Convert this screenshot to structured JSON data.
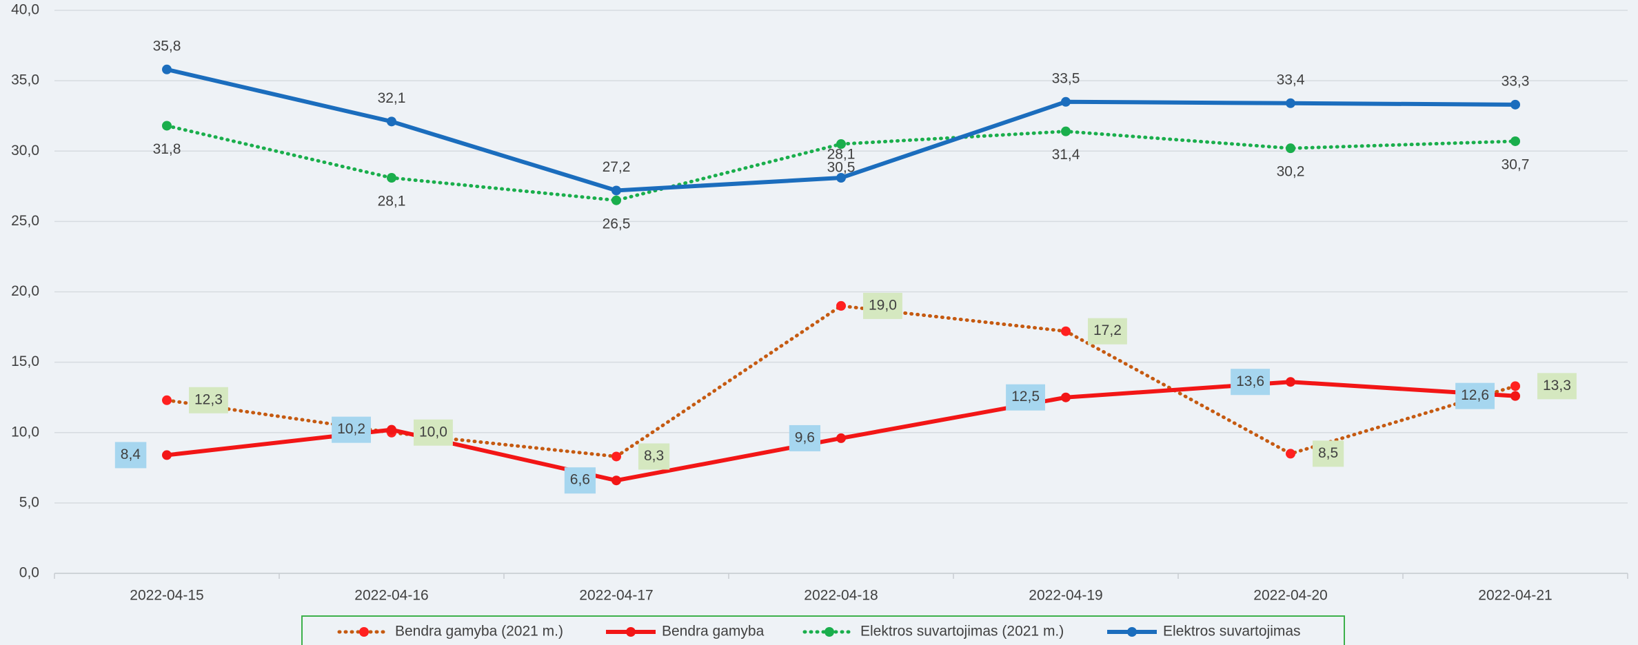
{
  "chart_data": {
    "type": "line",
    "categories": [
      "2022-04-15",
      "2022-04-16",
      "2022-04-17",
      "2022-04-18",
      "2022-04-19",
      "2022-04-20",
      "2022-04-21"
    ],
    "ylim": [
      0,
      40
    ],
    "yticks": [
      {
        "value": 0,
        "label": "0,0"
      },
      {
        "value": 5,
        "label": "5,0"
      },
      {
        "value": 10,
        "label": "10,0"
      },
      {
        "value": 15,
        "label": "15,0"
      },
      {
        "value": 20,
        "label": "20,0"
      },
      {
        "value": 25,
        "label": "25,0"
      },
      {
        "value": 30,
        "label": "30,0"
      },
      {
        "value": 35,
        "label": "35,0"
      },
      {
        "value": 40,
        "label": "40,0"
      }
    ],
    "grid": true,
    "legend": "bottom",
    "series": [
      {
        "name": "Bendra gamyba (2021 m.)",
        "color": "#c55a11",
        "marker_color": "#ff2020",
        "style": "dotted",
        "label_position": "right",
        "label_background": "#d5e8c0",
        "values": [
          12.3,
          10.0,
          8.3,
          19.0,
          17.2,
          8.5,
          13.3
        ],
        "value_labels": [
          "12,3",
          "10,0",
          "8,3",
          "19,0",
          "17,2",
          "8,5",
          "13,3"
        ]
      },
      {
        "name": "Bendra gamyba",
        "color": "#f21616",
        "marker_color": "#f21616",
        "style": "solid",
        "label_position": "left",
        "label_background": "#a6d6ef",
        "values": [
          8.4,
          10.2,
          6.6,
          9.6,
          12.5,
          13.6,
          12.6
        ],
        "value_labels": [
          "8,4",
          "10,2",
          "6,6",
          "9,6",
          "12,5",
          "13,6",
          "12,6"
        ]
      },
      {
        "name": "Elektros suvartojimas (2021 m.)",
        "color": "#1aae4c",
        "marker_color": "#1aae4c",
        "style": "dotted",
        "label_position": "below",
        "values": [
          31.8,
          28.1,
          26.5,
          30.5,
          31.4,
          30.2,
          30.7
        ],
        "value_labels": [
          "31,8",
          "28,1",
          "26,5",
          "30,5",
          "31,4",
          "30,2",
          "30,7"
        ]
      },
      {
        "name": "Elektros suvartojimas",
        "color": "#1b6dbd",
        "marker_color": "#1b6dbd",
        "style": "solid",
        "label_position": "above",
        "values": [
          35.8,
          32.1,
          27.2,
          28.1,
          33.5,
          33.4,
          33.3
        ],
        "value_labels": [
          "35,8",
          "32,1",
          "27,2",
          "28,1",
          "33,5",
          "33,4",
          "33,3"
        ]
      }
    ]
  }
}
